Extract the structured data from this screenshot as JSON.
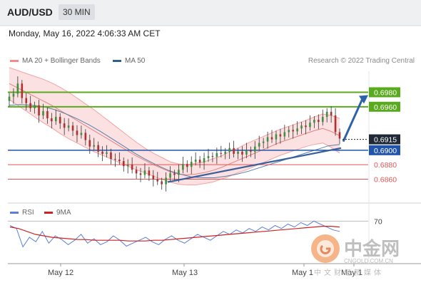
{
  "header": {
    "symbol": "AUD/USD",
    "timeframe": "30 MIN"
  },
  "datetime": "Monday, May 16, 2022 4:06:33 AM CET",
  "legend": {
    "bollinger": {
      "label": "MA 20 + Bollinger Bands",
      "color": "#f08c8c"
    },
    "ma50": {
      "label": "MA 50",
      "color": "#2f5f8f"
    }
  },
  "credit": "Research © 2022 Trading Central",
  "rsi_legend": {
    "rsi": {
      "label": "RSI",
      "color": "#5b7fd6"
    },
    "ma": {
      "label": "9MA",
      "color": "#cc2222"
    }
  },
  "x_labels": [
    "May 12",
    "May 13",
    "May 1",
    "May 1"
  ],
  "watermark": {
    "text": "中金网",
    "sub": "CNGOLD.COM.CN",
    "sub2": "中文财经新媒体"
  },
  "chart_data": {
    "type": "candlestick",
    "price_range": [
      0.683,
      0.7009
    ],
    "resistance_levels": [
      {
        "label": "0.6980",
        "value": 0.698,
        "color": "#5aaa1e"
      },
      {
        "label": "0.6960",
        "value": 0.696,
        "color": "#5aaa1e"
      }
    ],
    "current": {
      "label": "0.6915",
      "value": 0.6915
    },
    "support_levels": [
      {
        "label": "0.6900",
        "value": 0.69,
        "color": "#2255aa"
      },
      {
        "label": "0.6880",
        "value": 0.688,
        "color": "#e05555"
      },
      {
        "label": "0.6860",
        "value": 0.686,
        "color": "#e05555"
      }
    ],
    "close": [
      0.6974,
      0.6978,
      0.6992,
      0.6972,
      0.6965,
      0.6958,
      0.6962,
      0.6948,
      0.6954,
      0.6944,
      0.694,
      0.6946,
      0.6937,
      0.6931,
      0.6934,
      0.6927,
      0.6921,
      0.6924,
      0.6914,
      0.6905,
      0.6907,
      0.6898,
      0.6895,
      0.6897,
      0.6888,
      0.6887,
      0.6885,
      0.6878,
      0.688,
      0.6873,
      0.6868,
      0.6866,
      0.6872,
      0.6865,
      0.686,
      0.6857,
      0.6853,
      0.6862,
      0.6868,
      0.6866,
      0.6873,
      0.6881,
      0.6877,
      0.6884,
      0.6887,
      0.6883,
      0.6889,
      0.6892,
      0.6891,
      0.6896,
      0.6895,
      0.6898,
      0.6903,
      0.6895,
      0.6898,
      0.6894,
      0.69,
      0.6898,
      0.6905,
      0.691,
      0.6912,
      0.6918,
      0.6915,
      0.6922,
      0.6919,
      0.6925,
      0.6928,
      0.6926,
      0.693,
      0.6934,
      0.6932,
      0.6938,
      0.6942,
      0.6939,
      0.6946,
      0.6953,
      0.6948,
      0.6925,
      0.6916
    ],
    "ma20": [
      0.6992,
      0.6986,
      0.698,
      0.6974,
      0.6968,
      0.6962,
      0.6955,
      0.6948,
      0.6941,
      0.6934,
      0.6927,
      0.692,
      0.6913,
      0.6906,
      0.6899,
      0.6892,
      0.6886,
      0.688,
      0.6875,
      0.687,
      0.6867,
      0.6866,
      0.6867,
      0.6869,
      0.6872,
      0.6876,
      0.6881,
      0.6886,
      0.6891,
      0.6896,
      0.6901,
      0.6906,
      0.6911,
      0.6915,
      0.6919,
      0.6923,
      0.6927,
      0.693,
      0.6926,
      0.692
    ],
    "ma50": [
      0.6962,
      0.6963,
      0.6962,
      0.696,
      0.6956,
      0.695,
      0.6943,
      0.6935,
      0.6926,
      0.6916,
      0.6906,
      0.6896,
      0.6887,
      0.6879,
      0.6872,
      0.6867,
      0.6863,
      0.6862,
      0.6862,
      0.6864,
      0.6867,
      0.6871,
      0.6876,
      0.6881,
      0.6886,
      0.6891,
      0.6896,
      0.6901,
      0.6906,
      0.6908
    ],
    "trendline": [
      0.6856,
      0.6903
    ],
    "projection": [
      0.6912,
      0.6976
    ],
    "rsi": {
      "level_label": "70",
      "level": 70,
      "range": [
        20,
        80
      ],
      "values": [
        64,
        60,
        35,
        48,
        42,
        56,
        40,
        50,
        45,
        38,
        44,
        52,
        40,
        46,
        38,
        42,
        50,
        44,
        36,
        40,
        44,
        48,
        42,
        38,
        45,
        50,
        44,
        40,
        46,
        52,
        48,
        44,
        50,
        56,
        52,
        58,
        54,
        60,
        56,
        62,
        58,
        64,
        60,
        66,
        62,
        68,
        64,
        70,
        66,
        62,
        58,
        56
      ],
      "ma9": [
        62,
        60,
        56,
        52,
        50,
        48,
        47,
        46,
        45,
        45,
        44,
        44,
        44,
        44,
        43,
        43,
        43,
        44,
        44,
        45,
        46,
        47,
        48,
        49,
        50,
        51,
        52,
        53,
        54,
        55,
        56,
        57,
        58,
        59,
        60,
        61,
        62,
        63,
        63,
        62
      ]
    }
  }
}
